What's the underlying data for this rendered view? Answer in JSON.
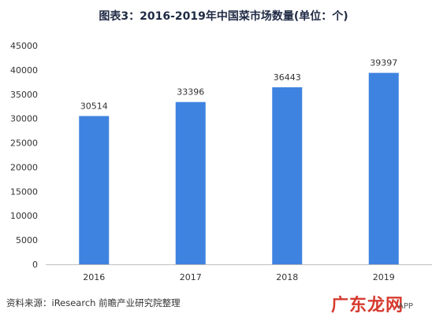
{
  "title": "图表3：2016-2019年中国菜市场数量(单位：个)",
  "source": "资料来源：iResearch 前瞻产业研究院整理",
  "watermark_logo": "广东龙网",
  "watermark_sub": "APP",
  "colors": {
    "bar": "#3f83e0",
    "axis": "#bfbfbf",
    "text": "#333333"
  },
  "chart_data": {
    "type": "bar",
    "categories": [
      "2016",
      "2017",
      "2018",
      "2019"
    ],
    "values": [
      30514,
      33396,
      36443,
      39397
    ],
    "ylim": [
      0,
      45000
    ],
    "yticks": [
      0,
      5000,
      10000,
      15000,
      20000,
      25000,
      30000,
      35000,
      40000,
      45000
    ],
    "grid": false,
    "legend": "none",
    "xlabel": "",
    "ylabel": ""
  }
}
